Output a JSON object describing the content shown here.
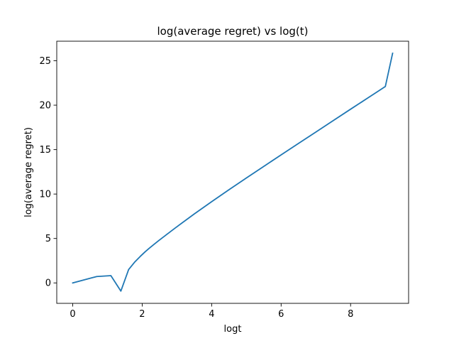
{
  "chart_data": {
    "type": "line",
    "title": "log(average regret) vs log(t)",
    "xlabel": "logt",
    "ylabel": "log(average regret)",
    "xlim": [
      -0.46,
      9.67
    ],
    "ylim": [
      -2.3,
      27.2
    ],
    "xticks": [
      0,
      2,
      4,
      6,
      8
    ],
    "yticks": [
      0,
      5,
      10,
      15,
      20,
      25
    ],
    "grid": false,
    "colors": {
      "line": "#1f77b4",
      "axes": "#000000",
      "background": "#ffffff"
    },
    "series": [
      {
        "x": [
          0,
          0.693,
          1.099,
          1.386,
          1.609,
          1.792,
          1.946,
          2.079,
          2.197,
          2.303,
          2.398,
          2.485,
          2.565,
          2.639,
          2.708,
          2.773,
          2.833,
          2.89,
          2.944,
          2.996,
          3.5,
          4,
          4.5,
          5,
          5.5,
          6,
          6.5,
          7,
          7.5,
          8,
          8.5,
          9,
          9.21
        ],
        "y": [
          0,
          0.72,
          0.82,
          -0.92,
          1.5,
          2.38,
          2.99,
          3.48,
          3.88,
          4.22,
          4.52,
          4.79,
          5.03,
          5.25,
          5.46,
          5.65,
          5.83,
          6.0,
          6.16,
          6.31,
          7.76,
          9.14,
          10.49,
          11.81,
          13.11,
          14.41,
          15.7,
          16.98,
          18.27,
          19.55,
          20.82,
          22.1,
          25.85
        ]
      }
    ]
  }
}
